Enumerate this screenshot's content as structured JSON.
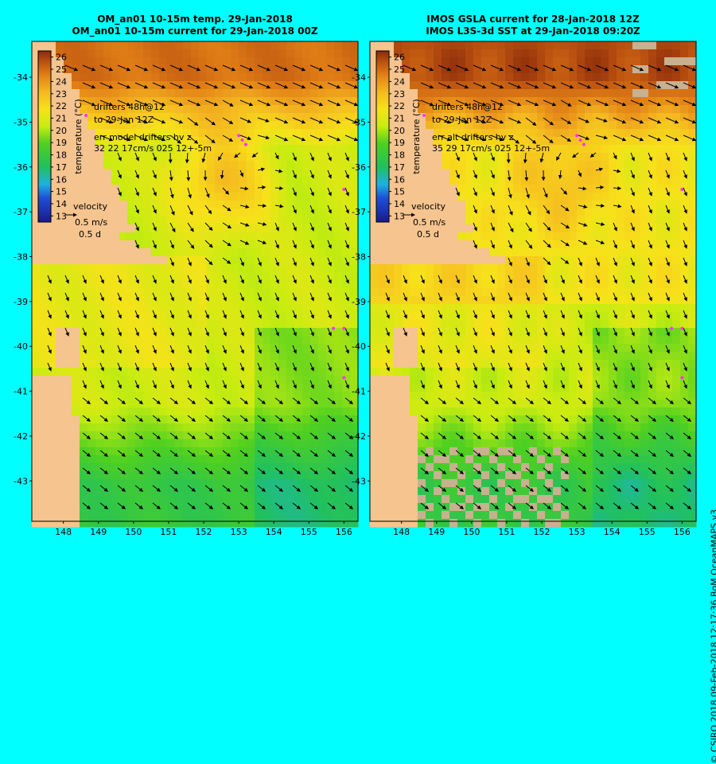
{
  "colors": {
    "background": "#00ffff",
    "land": "#f5c48f",
    "no_data": "#c9b08f",
    "drifter": "#ff33ff"
  },
  "colorbar": {
    "label": "temperature (°C)",
    "ticks": [
      "13",
      "14",
      "15",
      "16",
      "17",
      "18",
      "19",
      "20",
      "21",
      "22",
      "23",
      "24",
      "25",
      "26"
    ],
    "min": 13,
    "max": 27
  },
  "axes": {
    "lat_ticks": [
      "-34",
      "-35",
      "-36",
      "-37",
      "-38",
      "-39",
      "-40",
      "-41",
      "-42",
      "-43"
    ],
    "lon_ticks": [
      "148",
      "149",
      "150",
      "151",
      "152",
      "153",
      "154",
      "155",
      "156"
    ],
    "lat_range": [
      -33.2,
      -43.9
    ],
    "lon_range": [
      147.1,
      156.4
    ]
  },
  "panels": [
    {
      "id": "model",
      "title_line1": "OM_an01 10-15m temp. 29-Jan-2018",
      "title_line2": "OM_an01 10-15m current for 29-Jan-2018 00Z",
      "drifters_text_1": "drifters 48h@12",
      "drifters_text_2": "to 29-Jan 12Z",
      "err_text_1": "err model drifters hv z",
      "err_text_2": "32 22 17cm/s 025 12+-5m",
      "velocity_label": "velocity",
      "velocity_scale": "0.5 m/s",
      "velocity_time": "0.5 d"
    },
    {
      "id": "obs",
      "title_line1": "IMOS GSLA current for 28-Jan-2018 12Z",
      "title_line2": "IMOS L3S-3d SST at 29-Jan-2018 09:20Z",
      "drifters_text_1": "drifters 48h@12",
      "drifters_text_2": "to 29-Jan 12Z",
      "err_text_1": "err alt drifters hv z",
      "err_text_2": "35 29 17cm/s 025 12+-5m",
      "velocity_label": "velocity",
      "velocity_scale": "0.5 m/s",
      "velocity_time": "0.5 d"
    }
  ],
  "credit": "© CSIRO 2018   09-Feb-2018 12:17:36 BoM OceanMAPS v3",
  "chart_data": {
    "type": "heatmap",
    "variable": "temperature (°C)",
    "eddy_center": {
      "lon": 152.5,
      "lat": -36.3
    },
    "features": {
      "warm_north": "24-26 °C north of -35.5",
      "eddy_ring": "22-24 °C around eddy",
      "shelf_central": "20-22 °C",
      "south": "18-20 °C south of -41.5"
    }
  }
}
